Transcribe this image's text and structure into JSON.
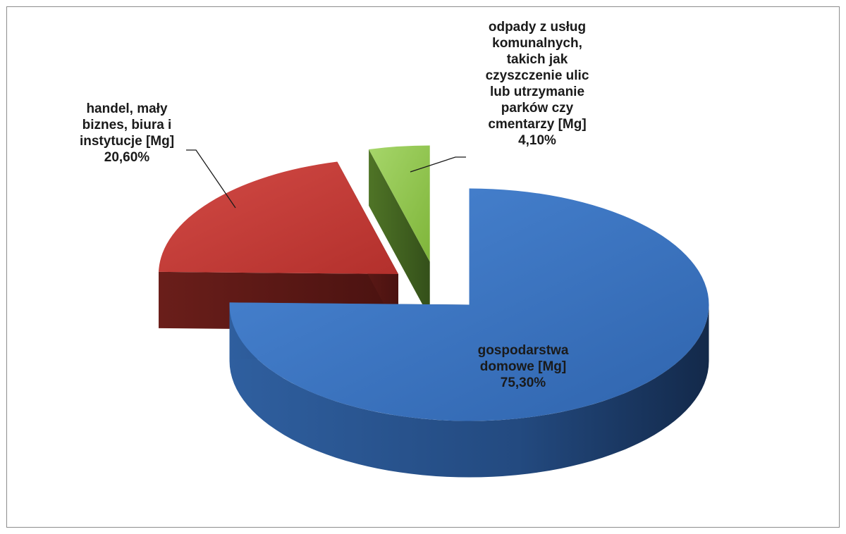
{
  "chart_data": {
    "type": "pie",
    "style": "3d-exploded",
    "title": "",
    "legend": "none",
    "slices": [
      {
        "label_lines": [
          "gospodarstwa",
          "domowe [Mg]"
        ],
        "label": "gospodarstwa domowe [Mg]",
        "value": 75.3,
        "value_label": "75,30%",
        "color": "#3a74c0",
        "label_placement": "inside"
      },
      {
        "label_lines": [
          "handel, mały",
          "biznes, biura  i",
          "instytucje [Mg]"
        ],
        "label": "handel, mały biznes, biura  i instytucje [Mg]",
        "value": 20.6,
        "value_label": "20,60%",
        "color": "#c43a36",
        "label_placement": "outside"
      },
      {
        "label_lines": [
          "odpady z usług",
          "komunalnych,",
          "takich jak",
          "czyszczenie ulic",
          "lub utrzymanie",
          "parków czy",
          "cmentarzy [Mg]"
        ],
        "label": "odpady z usług komunalnych, takich jak czyszczenie ulic lub utrzymanie parków czy cmentarzy [Mg]",
        "value": 4.1,
        "value_label": "4,10%",
        "color": "#8cc63f",
        "label_placement": "outside"
      }
    ]
  }
}
